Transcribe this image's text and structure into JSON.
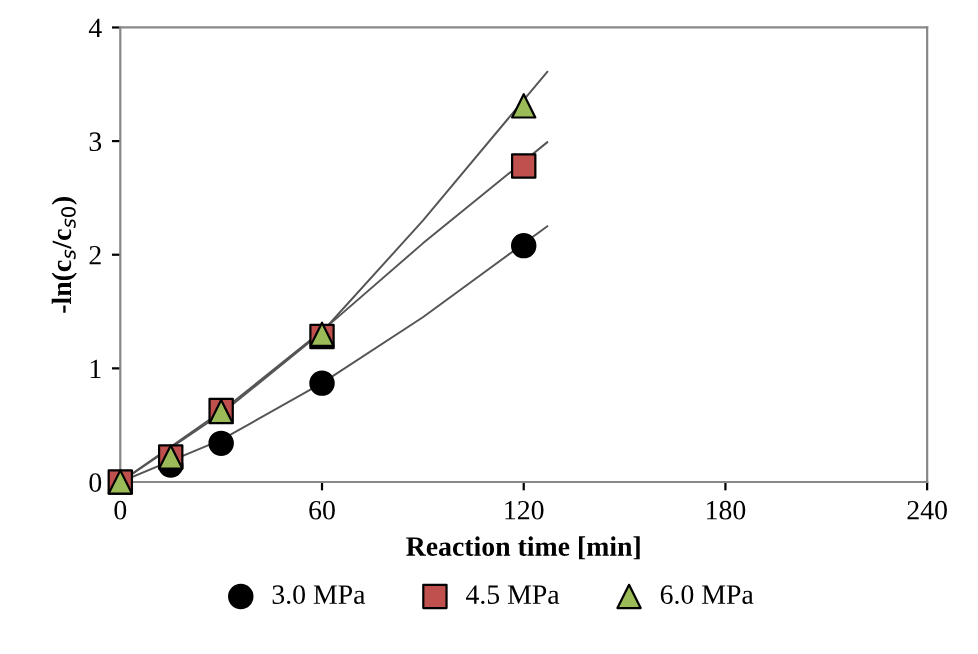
{
  "chart_data": {
    "type": "scatter",
    "xlabel": "Reaction time [min]",
    "ylabel": "-ln(c$_{s}$/c$_{s0}$)",
    "x": [
      0,
      15,
      30,
      60,
      120
    ],
    "series": [
      {
        "name": "3.0 MPa",
        "color": "#000000",
        "marker": "circle",
        "values": [
          null,
          0.15,
          0.34,
          0.87,
          2.08
        ]
      },
      {
        "name": "4.5 MPa",
        "color": "#c0504d",
        "marker": "square",
        "values": [
          0,
          0.22,
          0.63,
          1.28,
          2.78
        ]
      },
      {
        "name": "6.0 MPa",
        "color": "#9bbb59",
        "marker": "triangle",
        "values": [
          0,
          0.22,
          0.62,
          1.3,
          3.31
        ]
      },
      {
        "type": "line",
        "color": "#555555",
        "marker": "none",
        "x": [
          0,
          30,
          60,
          90,
          127
        ],
        "values": [
          0,
          0.37,
          0.87,
          1.45,
          2.25
        ]
      },
      {
        "type": "line",
        "color": "#555555",
        "marker": "none",
        "x": [
          0,
          30,
          60,
          90,
          127
        ],
        "values": [
          0,
          0.62,
          1.33,
          2.1,
          2.99
        ]
      },
      {
        "type": "line",
        "color": "#555555",
        "marker": "none",
        "x": [
          0,
          30,
          60,
          90,
          127
        ],
        "values": [
          0,
          0.6,
          1.32,
          2.3,
          3.61
        ]
      }
    ],
    "xlim": [
      0,
      240
    ],
    "xticks": [
      0,
      60,
      120,
      180,
      240
    ],
    "ylim": [
      0,
      4
    ],
    "yticks": [
      0,
      1,
      2,
      3,
      4
    ],
    "grid": false,
    "legend": "bottom"
  }
}
